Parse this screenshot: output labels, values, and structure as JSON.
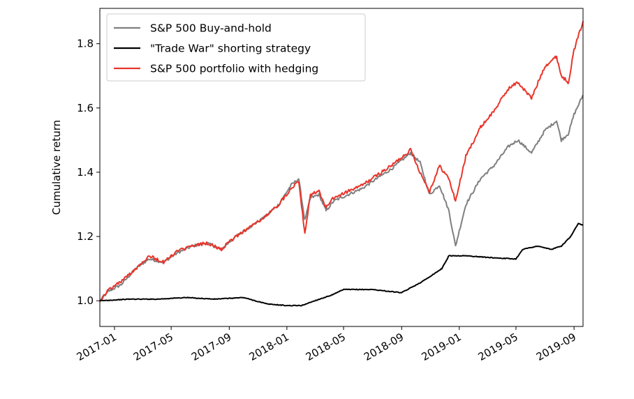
{
  "chart_data": {
    "type": "line",
    "title": "",
    "xlabel": "",
    "ylabel": "Cumulative return",
    "xlim": [
      "2016-12-01",
      "2019-09-20"
    ],
    "ylim": [
      0.92,
      1.91
    ],
    "x_ticks": [
      "2017-01",
      "2017-05",
      "2017-09",
      "2018-01",
      "2018-05",
      "2018-09",
      "2019-01",
      "2019-05",
      "2019-09"
    ],
    "y_ticks": [
      1.0,
      1.2,
      1.4,
      1.6,
      1.8
    ],
    "y_tick_labels": [
      "1.0",
      "1.2",
      "1.4",
      "1.6",
      "1.8"
    ],
    "grid": false,
    "legend_position": "top-left",
    "series": [
      {
        "name": "S&P 500 Buy-and-hold",
        "color": "#7f7f7f",
        "x": [
          "2016-12-01",
          "2016-12-20",
          "2017-01-15",
          "2017-02-15",
          "2017-03-15",
          "2017-04-15",
          "2017-05-15",
          "2017-06-15",
          "2017-07-15",
          "2017-08-15",
          "2017-09-15",
          "2017-10-15",
          "2017-11-15",
          "2017-12-15",
          "2018-01-10",
          "2018-01-26",
          "2018-02-08",
          "2018-02-20",
          "2018-03-10",
          "2018-03-25",
          "2018-04-10",
          "2018-05-10",
          "2018-06-10",
          "2018-07-10",
          "2018-08-10",
          "2018-09-20",
          "2018-10-10",
          "2018-10-30",
          "2018-11-20",
          "2018-12-10",
          "2018-12-24",
          "2019-01-15",
          "2019-02-15",
          "2019-03-15",
          "2019-04-15",
          "2019-05-05",
          "2019-06-03",
          "2019-07-01",
          "2019-07-26",
          "2019-08-05",
          "2019-08-20",
          "2019-09-01",
          "2019-09-20"
        ],
        "values": [
          1.0,
          1.03,
          1.05,
          1.1,
          1.13,
          1.12,
          1.15,
          1.17,
          1.18,
          1.16,
          1.2,
          1.23,
          1.26,
          1.3,
          1.36,
          1.38,
          1.25,
          1.32,
          1.33,
          1.28,
          1.31,
          1.33,
          1.35,
          1.38,
          1.41,
          1.46,
          1.43,
          1.33,
          1.36,
          1.28,
          1.17,
          1.3,
          1.38,
          1.42,
          1.48,
          1.5,
          1.46,
          1.53,
          1.56,
          1.5,
          1.52,
          1.58,
          1.64
        ]
      },
      {
        "name": "\"Trade War\" shorting strategy",
        "color": "#000000",
        "x": [
          "2016-12-01",
          "2017-02-01",
          "2017-04-01",
          "2017-06-01",
          "2017-08-01",
          "2017-10-01",
          "2017-11-20",
          "2018-01-01",
          "2018-02-01",
          "2018-03-01",
          "2018-04-10",
          "2018-05-01",
          "2018-07-01",
          "2018-09-01",
          "2018-10-15",
          "2018-11-25",
          "2018-12-10",
          "2019-01-15",
          "2019-03-01",
          "2019-05-01",
          "2019-05-15",
          "2019-06-15",
          "2019-07-15",
          "2019-08-05",
          "2019-08-25",
          "2019-09-10",
          "2019-09-20"
        ],
        "values": [
          1.0,
          1.005,
          1.005,
          1.01,
          1.005,
          1.01,
          0.99,
          0.985,
          0.985,
          1.0,
          1.02,
          1.035,
          1.035,
          1.025,
          1.06,
          1.1,
          1.14,
          1.14,
          1.135,
          1.13,
          1.16,
          1.17,
          1.16,
          1.17,
          1.2,
          1.24,
          1.235
        ]
      },
      {
        "name": "S&P 500 portfolio with hedging",
        "color": "#e8352b",
        "x": [
          "2016-12-01",
          "2016-12-20",
          "2017-01-15",
          "2017-02-15",
          "2017-03-15",
          "2017-04-15",
          "2017-05-15",
          "2017-06-15",
          "2017-07-15",
          "2017-08-15",
          "2017-09-15",
          "2017-10-15",
          "2017-11-15",
          "2017-12-15",
          "2018-01-10",
          "2018-01-26",
          "2018-02-08",
          "2018-02-20",
          "2018-03-10",
          "2018-03-25",
          "2018-04-10",
          "2018-05-10",
          "2018-06-10",
          "2018-07-10",
          "2018-08-10",
          "2018-09-20",
          "2018-10-10",
          "2018-10-30",
          "2018-11-20",
          "2018-12-10",
          "2018-12-24",
          "2019-01-15",
          "2019-02-15",
          "2019-03-15",
          "2019-04-15",
          "2019-05-05",
          "2019-06-03",
          "2019-07-01",
          "2019-07-26",
          "2019-08-05",
          "2019-08-20",
          "2019-09-01",
          "2019-09-20"
        ],
        "values": [
          1.0,
          1.035,
          1.06,
          1.1,
          1.14,
          1.12,
          1.155,
          1.17,
          1.18,
          1.16,
          1.2,
          1.23,
          1.26,
          1.3,
          1.35,
          1.375,
          1.21,
          1.33,
          1.34,
          1.29,
          1.32,
          1.34,
          1.36,
          1.39,
          1.42,
          1.47,
          1.4,
          1.34,
          1.42,
          1.38,
          1.31,
          1.45,
          1.54,
          1.59,
          1.66,
          1.68,
          1.63,
          1.73,
          1.76,
          1.7,
          1.68,
          1.78,
          1.87
        ]
      }
    ]
  }
}
